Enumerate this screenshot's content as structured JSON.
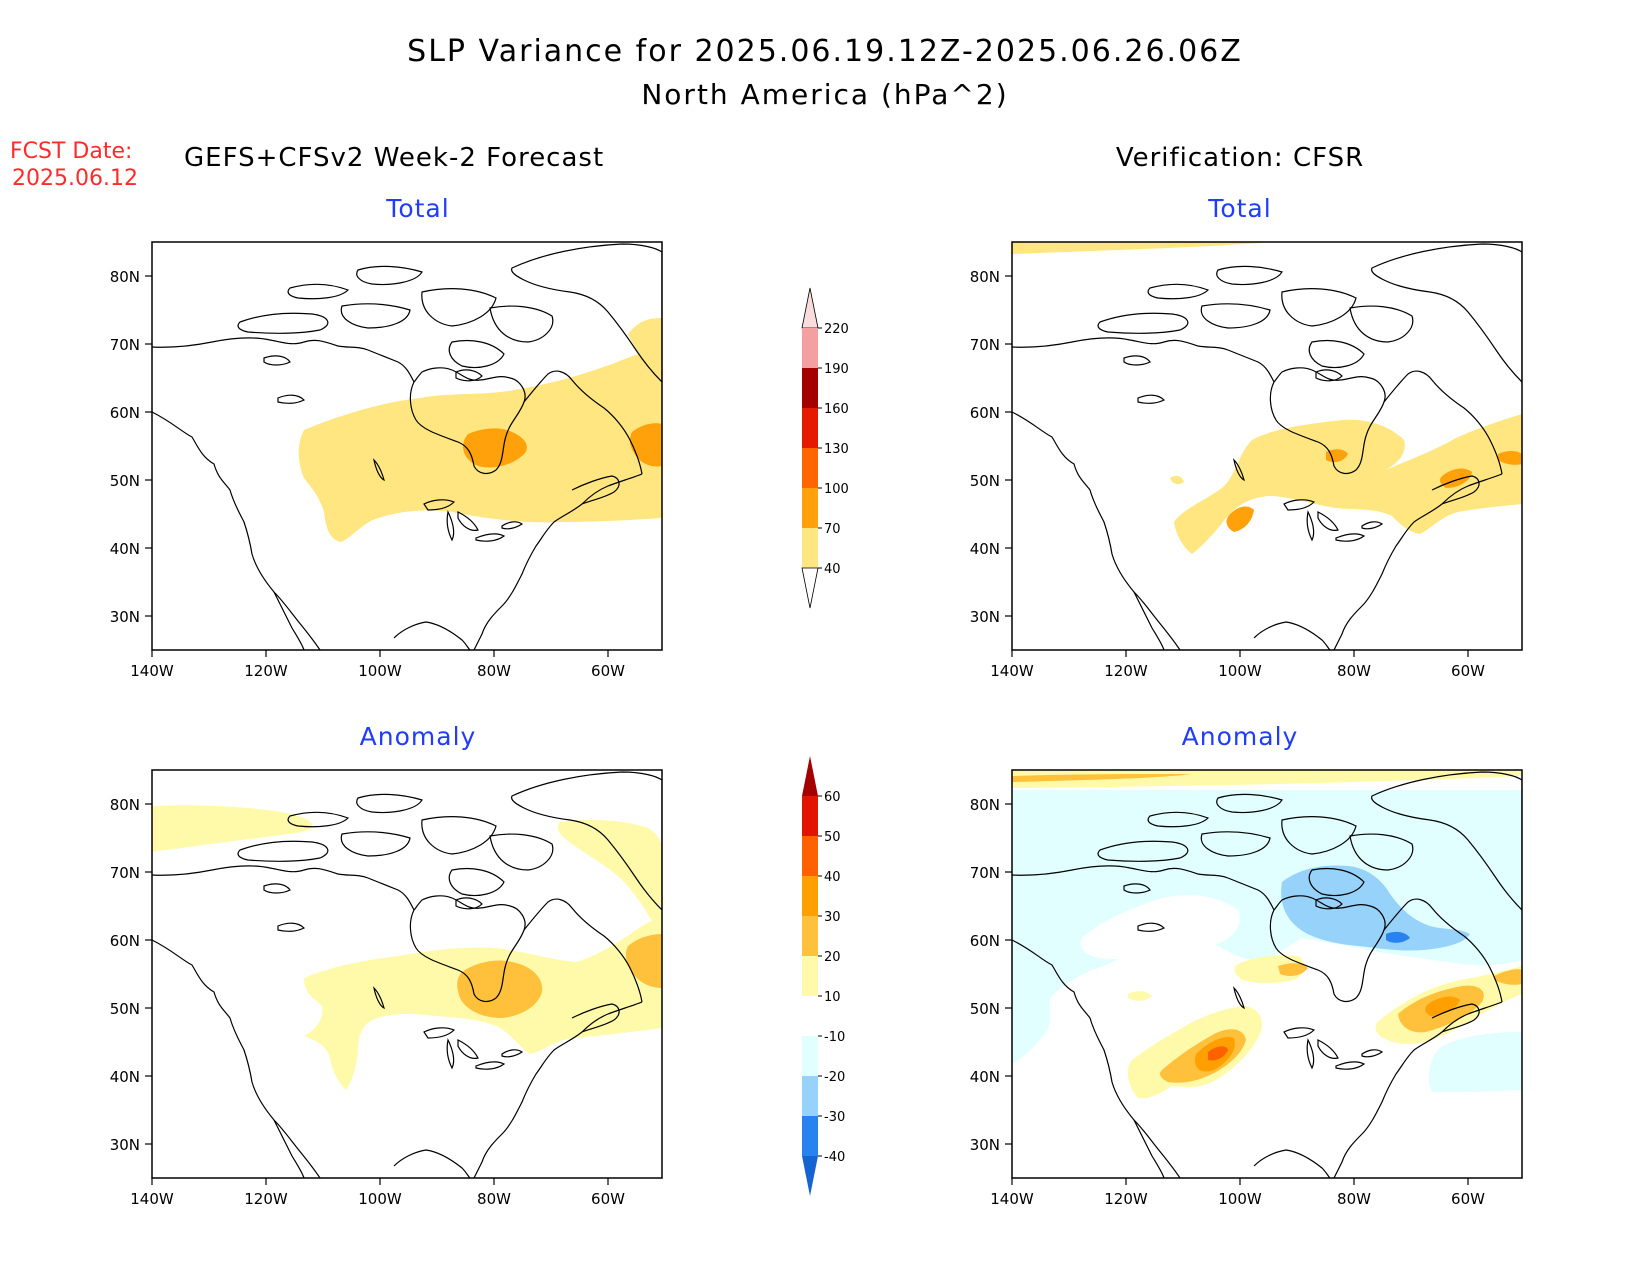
{
  "header": {
    "title_line1": "SLP Variance for 2025.06.19.12Z-2025.06.26.06Z",
    "title_line2": "North America (hPa^2)",
    "fcst_label": "FCST Date:",
    "fcst_date": "2025.06.12",
    "forecast_model": "GEFS+CFSv2 Week-2 Forecast",
    "verification_model": "Verification: CFSR"
  },
  "panels": {
    "forecast_total_title": "Total",
    "verification_total_title": "Total",
    "forecast_anomaly_title": "Anomaly",
    "verification_anomaly_title": "Anomaly"
  },
  "axes": {
    "lat_ticks": [
      "80N",
      "70N",
      "60N",
      "50N",
      "40N",
      "30N"
    ],
    "lon_ticks": [
      "140W",
      "120W",
      "100W",
      "80W",
      "60W"
    ]
  },
  "colorbars": {
    "total": {
      "labels": [
        "40",
        "70",
        "100",
        "130",
        "160",
        "190",
        "220"
      ],
      "colors": [
        "#ffe680",
        "#ffa10a",
        "#ff6500",
        "#e41b00",
        "#a50000",
        "#f2a0a0",
        "#fbdcdc"
      ]
    },
    "anomaly": {
      "labels": [
        "-40",
        "-30",
        "-20",
        "-10",
        "10",
        "20",
        "30",
        "40",
        "50",
        "60"
      ],
      "colors": [
        "#1464d2",
        "#2882f0",
        "#96d2fa",
        "#e1ffff",
        "#ffffff",
        "#fffaaa",
        "#ffc03c",
        "#ffa000",
        "#ff6000",
        "#e11400",
        "#a50000"
      ]
    }
  },
  "colors": {
    "shade_total_1": "#ffe680",
    "shade_total_2": "#ffa10a",
    "shade_anom_pos_1": "#fffaaa",
    "shade_anom_pos_2": "#ffc03c",
    "shade_anom_pos_3": "#ffa000",
    "shade_anom_pos_4": "#ff6000",
    "shade_anom_neg_1": "#e1ffff",
    "shade_anom_neg_2": "#96d2fa",
    "shade_anom_neg_3": "#2882f0",
    "title_red": "#ff2a2a",
    "panel_title_blue": "#1f3cff"
  }
}
